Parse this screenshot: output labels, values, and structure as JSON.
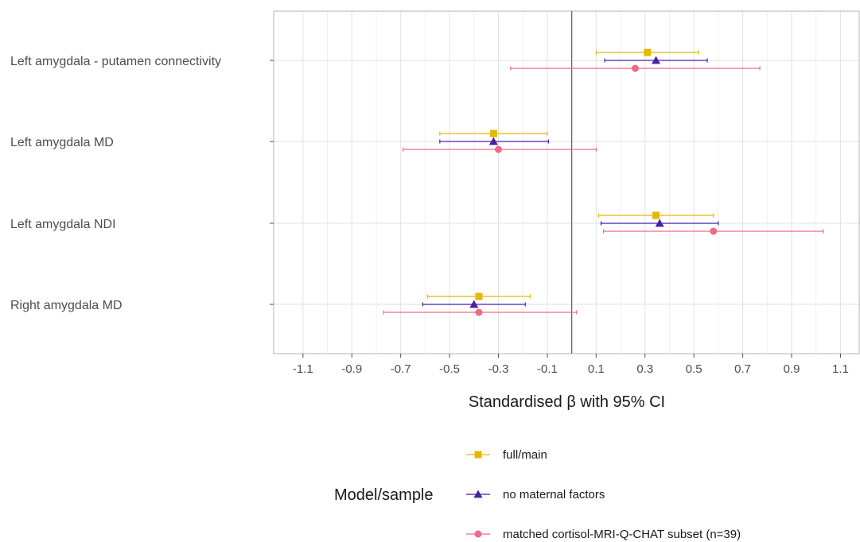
{
  "chart_data": {
    "type": "forest",
    "xlabel": "Standardised β with 95% CI",
    "xlim": [
      -1.22,
      1.18
    ],
    "x_ticks": [
      -1.1,
      -0.9,
      -0.7,
      -0.5,
      -0.3,
      -0.1,
      0.1,
      0.3,
      0.5,
      0.7,
      0.9,
      1.1
    ],
    "x_tick_labels": [
      "-1.1",
      "-0.9",
      "-0.7",
      "-0.5",
      "-0.3",
      "-0.1",
      "0.1",
      "0.3",
      "0.5",
      "0.7",
      "0.9",
      "1.1"
    ],
    "reference_line": 0.0,
    "grid": true,
    "legend_title": "Model/sample",
    "legend_position": "bottom",
    "categories": [
      "Left amygdala - putamen connectivity",
      "Left amygdala MD",
      "Left amygdala NDI",
      "Right amygdala MD"
    ],
    "series": [
      {
        "name": "full/main",
        "color": "#E6B800",
        "marker": "square",
        "estimate": [
          0.31,
          -0.32,
          0.345,
          -0.38
        ],
        "lower": [
          0.1,
          -0.54,
          0.11,
          -0.59
        ],
        "upper": [
          0.52,
          -0.1,
          0.58,
          -0.17
        ]
      },
      {
        "name": "no maternal factors",
        "color": "#4B1FA6",
        "marker": "triangle",
        "estimate": [
          0.345,
          -0.32,
          0.36,
          -0.4
        ],
        "lower": [
          0.135,
          -0.54,
          0.12,
          -0.61
        ],
        "upper": [
          0.555,
          -0.095,
          0.6,
          -0.19
        ]
      },
      {
        "name": "matched cortisol-MRI-Q-CHAT subset (n=39)",
        "color": "#EE6A87",
        "marker": "circle",
        "estimate": [
          0.26,
          -0.3,
          0.58,
          -0.38
        ],
        "lower": [
          -0.25,
          -0.69,
          0.13,
          -0.77
        ],
        "upper": [
          0.77,
          0.1,
          1.03,
          0.02
        ]
      }
    ]
  }
}
